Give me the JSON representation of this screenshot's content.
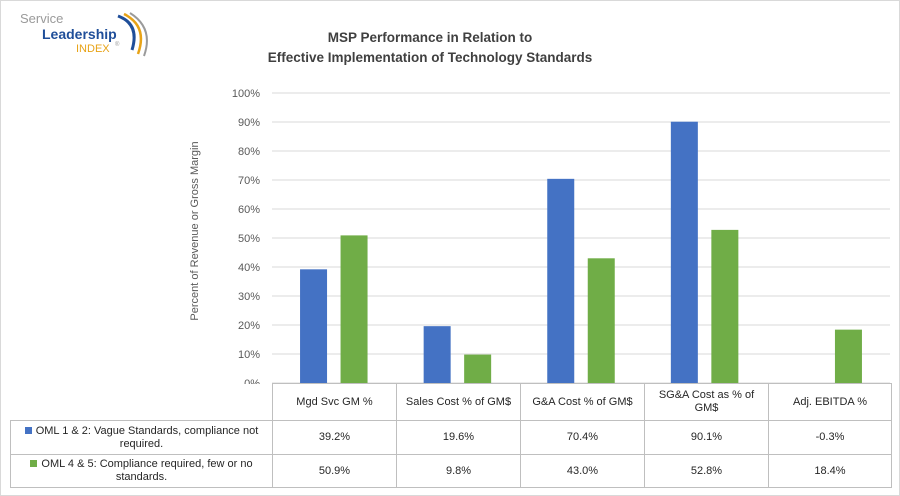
{
  "logo": {
    "line1": "Service",
    "line2": "Leadership",
    "line3": "INDEX",
    "trademark": "®",
    "colors": {
      "gray": "#9a9a9a",
      "blue": "#1f4e99",
      "gold": "#e8a317"
    }
  },
  "colors": {
    "series1": "#4472c4",
    "series2": "#70ad47",
    "grid": "#d9d9d9",
    "axis_text": "#595959"
  },
  "chart_data": {
    "type": "bar",
    "title": [
      "MSP Performance in Relation to",
      "Effective Implementation of Technology Standards"
    ],
    "ylabel": "Percent of Revenue or Gross Margin",
    "xlabel": "",
    "ylim": [
      0,
      100
    ],
    "y_ticks": [
      "0%",
      "10%",
      "20%",
      "30%",
      "40%",
      "50%",
      "60%",
      "70%",
      "80%",
      "90%",
      "100%"
    ],
    "grid": true,
    "legend": "data-table",
    "categories": [
      "Mgd Svc GM %",
      "Sales Cost % of GM$",
      "G&A Cost % of GM$",
      "SG&A Cost as % of GM$",
      "Adj. EBITDA %"
    ],
    "series": [
      {
        "name": "OML 1 & 2: Vague Standards, compliance not required.",
        "color": "#4472c4",
        "values": [
          39.2,
          19.6,
          70.4,
          90.1,
          -0.3
        ],
        "labels": [
          "39.2%",
          "19.6%",
          "70.4%",
          "90.1%",
          "-0.3%"
        ]
      },
      {
        "name": "OML 4 & 5: Compliance required, few or no standards.",
        "color": "#70ad47",
        "values": [
          50.9,
          9.8,
          43.0,
          52.8,
          18.4
        ],
        "labels": [
          "50.9%",
          "9.8%",
          "43.0%",
          "52.8%",
          "18.4%"
        ]
      }
    ]
  }
}
